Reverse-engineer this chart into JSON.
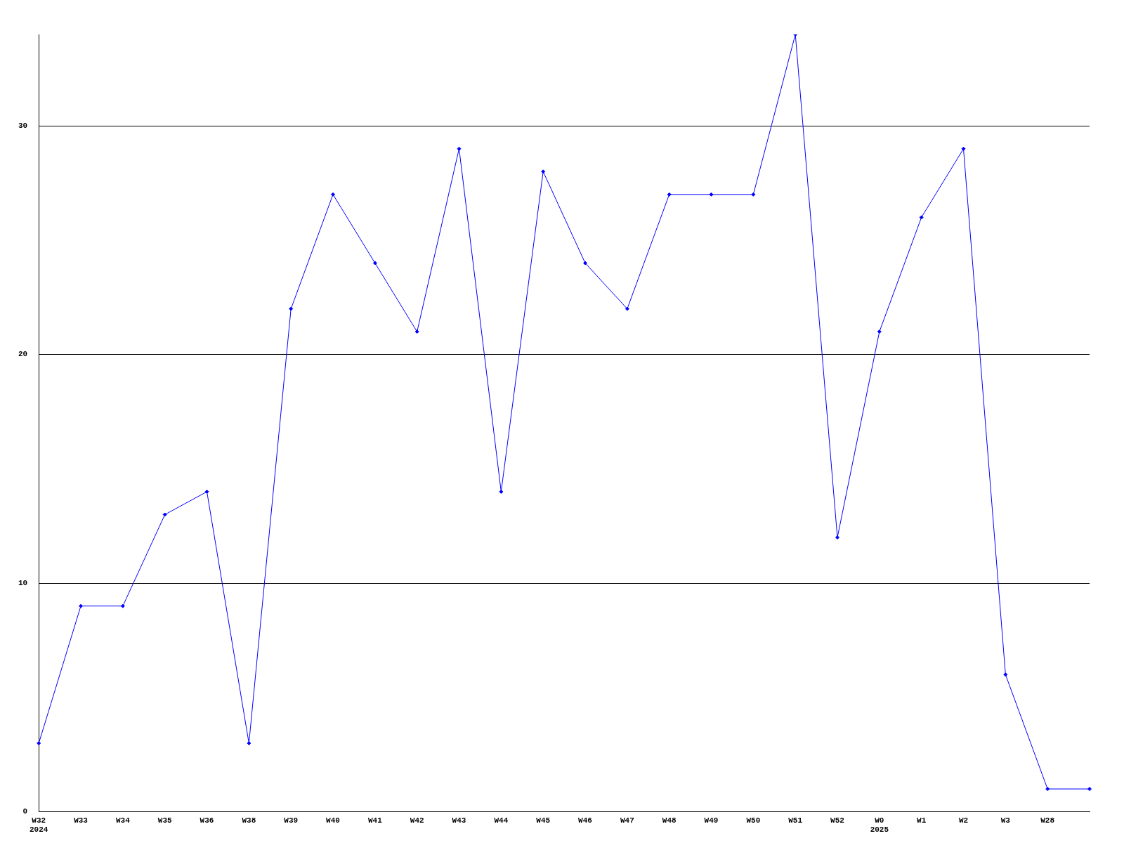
{
  "chart_data": {
    "type": "line",
    "categories": [
      "W32\n2024",
      "W33",
      "W34",
      "W35",
      "W36",
      "W38",
      "W39",
      "W40",
      "W41",
      "W42",
      "W43",
      "W44",
      "W45",
      "W46",
      "W47",
      "W48",
      "W49",
      "W50",
      "W51",
      "W52",
      "W0\n2025",
      "W1",
      "W2",
      "W3",
      "W28",
      null
    ],
    "series": [
      {
        "color": "#0000ff",
        "values": [
          3,
          9,
          9,
          13,
          14,
          3,
          22,
          27,
          24,
          21,
          29,
          14,
          28,
          24,
          22,
          27,
          27,
          27,
          34,
          12,
          21,
          26,
          29,
          6,
          1,
          1
        ]
      }
    ],
    "ylim": [
      0,
      34
    ],
    "yticks": [
      0,
      10,
      20,
      30
    ],
    "grid": "y",
    "legend": false,
    "marker": "diamond",
    "line_style": "solid"
  }
}
